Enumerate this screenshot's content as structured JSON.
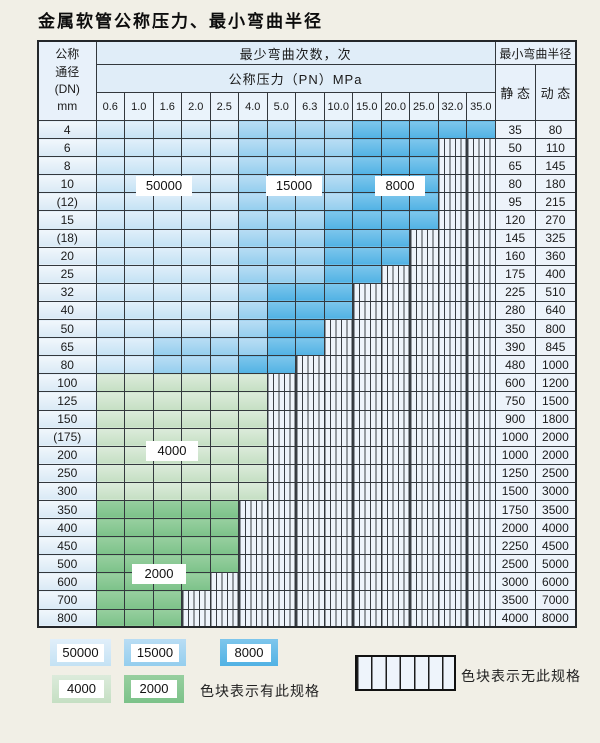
{
  "title": "金属软管公称压力、最小弯曲半径",
  "header": {
    "dn_lines": [
      "公称",
      "通径",
      "(DN)",
      "mm"
    ],
    "cycles_label": "最少弯曲次数，次",
    "pressure_label": "公称压力（PN）MPa",
    "radius_label": "最小弯曲半径",
    "static_label": "静 态",
    "dynamic_label": "动 态"
  },
  "region_labels": {
    "b50000": "50000",
    "b15000": "15000",
    "b8000": "8000",
    "b4000": "4000",
    "b2000": "2000"
  },
  "legend": {
    "items": [
      {
        "label": "50000",
        "key": "50000"
      },
      {
        "label": "15000",
        "key": "15000"
      },
      {
        "label": "8000",
        "key": "8000"
      },
      {
        "label": "4000",
        "key": "4000"
      },
      {
        "label": "2000",
        "key": "2000"
      }
    ],
    "has_spec_text": "色块表示有此规格",
    "no_spec_text": "色块表示无此规格"
  },
  "colors": {
    "50000": {
      "top": "#e1effa",
      "bottom": "#c4e2f4"
    },
    "15000": {
      "top": "#b9ddf4",
      "bottom": "#94ceee"
    },
    "8000": {
      "top": "#7ec6ec",
      "bottom": "#51b2e4"
    },
    "4000": {
      "top": "#dcebdb",
      "bottom": "#c5dfc3"
    },
    "2000": {
      "top": "#97cf9f",
      "bottom": "#7cc289"
    },
    "no_spec_bg": "#eef4fb",
    "no_spec_line": "#3a3f45"
  },
  "chart_data": {
    "type": "table",
    "title": "金属软管公称压力、最小弯曲半径",
    "row_header": "公称通径(DN) mm",
    "column_group_cycles": "最少弯曲次数，次",
    "column_group_pressure": "公称压力（PN）MPa",
    "column_group_radius": "最小弯曲半径",
    "pressure_columns": [
      "0.6",
      "1.0",
      "1.6",
      "2.0",
      "2.5",
      "4.0",
      "5.0",
      "6.3",
      "10.0",
      "15.0",
      "20.0",
      "25.0",
      "32.0",
      "35.0"
    ],
    "radius_columns": [
      "静 态",
      "动 态"
    ],
    "cycle_categories": [
      "50000",
      "15000",
      "8000",
      "4000",
      "2000"
    ],
    "bands_note": "bands = run-length [cycles, number_of_pressure_columns] starting at 0.6 MPa; pressure columns not covered by a band have no specification (striped)",
    "spec_meaning": "色块表示有此规格",
    "no_spec_meaning": "色块表示无此规格",
    "rows": [
      {
        "dn": "4",
        "bands": [
          [
            "50000",
            5
          ],
          [
            "15000",
            4
          ],
          [
            "8000",
            5
          ]
        ],
        "static": "35",
        "dynamic": "80"
      },
      {
        "dn": "6",
        "bands": [
          [
            "50000",
            5
          ],
          [
            "15000",
            4
          ],
          [
            "8000",
            3
          ]
        ],
        "static": "50",
        "dynamic": "110"
      },
      {
        "dn": "8",
        "bands": [
          [
            "50000",
            5
          ],
          [
            "15000",
            4
          ],
          [
            "8000",
            3
          ]
        ],
        "static": "65",
        "dynamic": "145"
      },
      {
        "dn": "10",
        "bands": [
          [
            "50000",
            5
          ],
          [
            "15000",
            4
          ],
          [
            "8000",
            3
          ]
        ],
        "static": "80",
        "dynamic": "180"
      },
      {
        "dn": "(12)",
        "bands": [
          [
            "50000",
            5
          ],
          [
            "15000",
            4
          ],
          [
            "8000",
            3
          ]
        ],
        "static": "95",
        "dynamic": "215"
      },
      {
        "dn": "15",
        "bands": [
          [
            "50000",
            5
          ],
          [
            "15000",
            3
          ],
          [
            "8000",
            4
          ]
        ],
        "static": "120",
        "dynamic": "270"
      },
      {
        "dn": "(18)",
        "bands": [
          [
            "50000",
            5
          ],
          [
            "15000",
            3
          ],
          [
            "8000",
            3
          ]
        ],
        "static": "145",
        "dynamic": "325"
      },
      {
        "dn": "20",
        "bands": [
          [
            "50000",
            5
          ],
          [
            "15000",
            3
          ],
          [
            "8000",
            3
          ]
        ],
        "static": "160",
        "dynamic": "360"
      },
      {
        "dn": "25",
        "bands": [
          [
            "50000",
            5
          ],
          [
            "15000",
            3
          ],
          [
            "8000",
            2
          ]
        ],
        "static": "175",
        "dynamic": "400"
      },
      {
        "dn": "32",
        "bands": [
          [
            "50000",
            5
          ],
          [
            "15000",
            1
          ],
          [
            "8000",
            3
          ]
        ],
        "static": "225",
        "dynamic": "510"
      },
      {
        "dn": "40",
        "bands": [
          [
            "50000",
            5
          ],
          [
            "15000",
            1
          ],
          [
            "8000",
            3
          ]
        ],
        "static": "280",
        "dynamic": "640"
      },
      {
        "dn": "50",
        "bands": [
          [
            "50000",
            5
          ],
          [
            "15000",
            1
          ],
          [
            "8000",
            2
          ]
        ],
        "static": "350",
        "dynamic": "800"
      },
      {
        "dn": "65",
        "bands": [
          [
            "50000",
            2
          ],
          [
            "15000",
            4
          ],
          [
            "8000",
            2
          ]
        ],
        "static": "390",
        "dynamic": "845"
      },
      {
        "dn": "80",
        "bands": [
          [
            "50000",
            2
          ],
          [
            "15000",
            3
          ],
          [
            "8000",
            2
          ]
        ],
        "static": "480",
        "dynamic": "1000"
      },
      {
        "dn": "100",
        "bands": [
          [
            "4000",
            6
          ]
        ],
        "static": "600",
        "dynamic": "1200"
      },
      {
        "dn": "125",
        "bands": [
          [
            "4000",
            6
          ]
        ],
        "static": "750",
        "dynamic": "1500"
      },
      {
        "dn": "150",
        "bands": [
          [
            "4000",
            6
          ]
        ],
        "static": "900",
        "dynamic": "1800"
      },
      {
        "dn": "(175)",
        "bands": [
          [
            "4000",
            6
          ]
        ],
        "static": "1000",
        "dynamic": "2000"
      },
      {
        "dn": "200",
        "bands": [
          [
            "4000",
            6
          ]
        ],
        "static": "1000",
        "dynamic": "2000"
      },
      {
        "dn": "250",
        "bands": [
          [
            "4000",
            6
          ]
        ],
        "static": "1250",
        "dynamic": "2500"
      },
      {
        "dn": "300",
        "bands": [
          [
            "4000",
            6
          ]
        ],
        "static": "1500",
        "dynamic": "3000"
      },
      {
        "dn": "350",
        "bands": [
          [
            "2000",
            5
          ]
        ],
        "static": "1750",
        "dynamic": "3500"
      },
      {
        "dn": "400",
        "bands": [
          [
            "2000",
            5
          ]
        ],
        "static": "2000",
        "dynamic": "4000"
      },
      {
        "dn": "450",
        "bands": [
          [
            "2000",
            5
          ]
        ],
        "static": "2250",
        "dynamic": "4500"
      },
      {
        "dn": "500",
        "bands": [
          [
            "2000",
            5
          ]
        ],
        "static": "2500",
        "dynamic": "5000"
      },
      {
        "dn": "600",
        "bands": [
          [
            "2000",
            4
          ]
        ],
        "static": "3000",
        "dynamic": "6000"
      },
      {
        "dn": "700",
        "bands": [
          [
            "2000",
            3
          ]
        ],
        "static": "3500",
        "dynamic": "7000"
      },
      {
        "dn": "800",
        "bands": [
          [
            "2000",
            3
          ]
        ],
        "static": "4000",
        "dynamic": "8000"
      }
    ]
  }
}
